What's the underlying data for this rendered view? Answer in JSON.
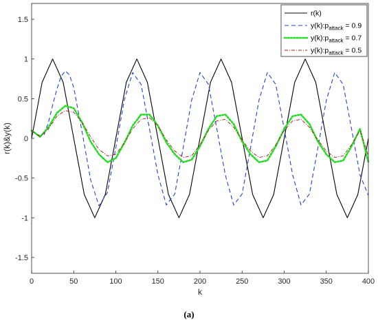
{
  "caption": "(a)",
  "chart_data": {
    "type": "line",
    "xlabel": "k",
    "ylabel": "r(k)&y(k)",
    "xlim": [
      0,
      400
    ],
    "ylim": [
      -1.7,
      1.7
    ],
    "xticks": [
      0,
      50,
      100,
      150,
      200,
      250,
      300,
      350,
      400
    ],
    "yticks": [
      -1.5,
      -1,
      -0.5,
      0,
      0.5,
      1,
      1.5
    ],
    "xtick_labels": [
      "0",
      "50",
      "100",
      "150",
      "200",
      "250",
      "300",
      "350",
      "400"
    ],
    "ytick_labels": [
      "-1.5",
      "-1",
      "-0.5",
      "0",
      "0.5",
      "1",
      "1.5"
    ],
    "grid": false,
    "legend_position": "top-right",
    "series": [
      {
        "name": "r(k)",
        "legend_main": "r(k)",
        "legend_sub": "",
        "legend_tail": "",
        "color": "#000000",
        "style": "solid",
        "x": [
          0,
          12.5,
          25,
          37.5,
          50,
          62.5,
          75,
          87.5,
          100,
          112.5,
          125,
          137.5,
          150,
          162.5,
          175,
          187.5,
          200,
          212.5,
          225,
          237.5,
          250,
          262.5,
          275,
          287.5,
          300,
          312.5,
          325,
          337.5,
          350,
          362.5,
          375,
          387.5,
          400
        ],
        "y": [
          0,
          0.707,
          1,
          0.707,
          0,
          -0.707,
          -1,
          -0.707,
          0,
          0.707,
          1,
          0.707,
          0,
          -0.707,
          -1,
          -0.707,
          0,
          0.707,
          1,
          0.707,
          0,
          -0.707,
          -1,
          -0.707,
          0,
          0.707,
          1,
          0.707,
          0,
          -0.707,
          -1,
          -0.707,
          0
        ]
      },
      {
        "name": "y(k):p_attack = 0.9",
        "legend_main": "y(k):p",
        "legend_sub": "attack",
        "legend_tail": " = 0.9",
        "color": "#1f3fd8",
        "style": "dashed",
        "x": [
          0,
          5,
          10,
          15,
          20,
          25,
          30,
          35,
          40,
          45,
          50,
          60,
          70,
          80,
          90,
          100,
          110,
          120,
          130,
          140,
          150,
          160,
          170,
          180,
          190,
          200,
          210,
          220,
          230,
          240,
          250,
          260,
          270,
          280,
          290,
          300,
          310,
          320,
          330,
          340,
          350,
          360,
          370,
          380,
          390,
          400
        ],
        "y": [
          0.08,
          0.07,
          0.03,
          0.05,
          0.2,
          0.42,
          0.62,
          0.78,
          0.85,
          0.8,
          0.64,
          0.08,
          -0.52,
          -0.85,
          -0.68,
          -0.12,
          0.48,
          0.83,
          0.68,
          0.12,
          -0.46,
          -0.84,
          -0.7,
          -0.12,
          0.48,
          0.83,
          0.68,
          0.12,
          -0.46,
          -0.84,
          -0.7,
          -0.12,
          0.48,
          0.83,
          0.68,
          0.12,
          -0.46,
          -0.84,
          -0.7,
          -0.12,
          0.48,
          0.83,
          0.68,
          0.12,
          -0.46,
          -0.72
        ]
      },
      {
        "name": "y(k):p_attack = 0.7",
        "legend_main": "y(k):p",
        "legend_sub": "attack",
        "legend_tail": " = 0.7",
        "color": "#22dd22",
        "style": "dotted",
        "x": [
          0,
          10,
          20,
          30,
          40,
          50,
          60,
          70,
          80,
          90,
          100,
          110,
          120,
          130,
          140,
          150,
          160,
          170,
          180,
          190,
          200,
          210,
          220,
          230,
          240,
          250,
          260,
          270,
          280,
          290,
          300,
          310,
          320,
          330,
          340,
          350,
          360,
          370,
          380,
          390,
          400
        ],
        "y": [
          0.1,
          0.02,
          0.14,
          0.32,
          0.41,
          0.38,
          0.2,
          -0.04,
          -0.2,
          -0.3,
          -0.25,
          -0.06,
          0.16,
          0.3,
          0.3,
          0.16,
          -0.05,
          -0.2,
          -0.3,
          -0.27,
          -0.1,
          0.12,
          0.28,
          0.3,
          0.18,
          -0.04,
          -0.2,
          -0.3,
          -0.28,
          -0.1,
          0.12,
          0.28,
          0.3,
          0.18,
          -0.04,
          -0.2,
          -0.3,
          -0.28,
          -0.1,
          0.12,
          -0.3
        ]
      },
      {
        "name": "y(k):p_attack = 0.5",
        "legend_main": "y(k):p",
        "legend_sub": "attack",
        "legend_tail": " = 0.5",
        "color": "#a01818",
        "style": "dashdot",
        "x": [
          0,
          10,
          20,
          30,
          40,
          50,
          60,
          70,
          80,
          90,
          100,
          110,
          120,
          130,
          140,
          150,
          160,
          170,
          180,
          190,
          200,
          210,
          220,
          230,
          240,
          250,
          260,
          270,
          280,
          290,
          300,
          310,
          320,
          330,
          340,
          350,
          360,
          370,
          380,
          390,
          400
        ],
        "y": [
          0.1,
          0.02,
          0.12,
          0.28,
          0.35,
          0.33,
          0.2,
          0.02,
          -0.14,
          -0.22,
          -0.2,
          -0.06,
          0.12,
          0.24,
          0.26,
          0.16,
          -0.02,
          -0.16,
          -0.24,
          -0.22,
          -0.08,
          0.1,
          0.22,
          0.24,
          0.14,
          -0.02,
          -0.16,
          -0.24,
          -0.22,
          -0.08,
          0.1,
          0.22,
          0.24,
          0.14,
          -0.02,
          -0.16,
          -0.24,
          -0.22,
          -0.08,
          0.1,
          -0.22
        ]
      }
    ]
  }
}
